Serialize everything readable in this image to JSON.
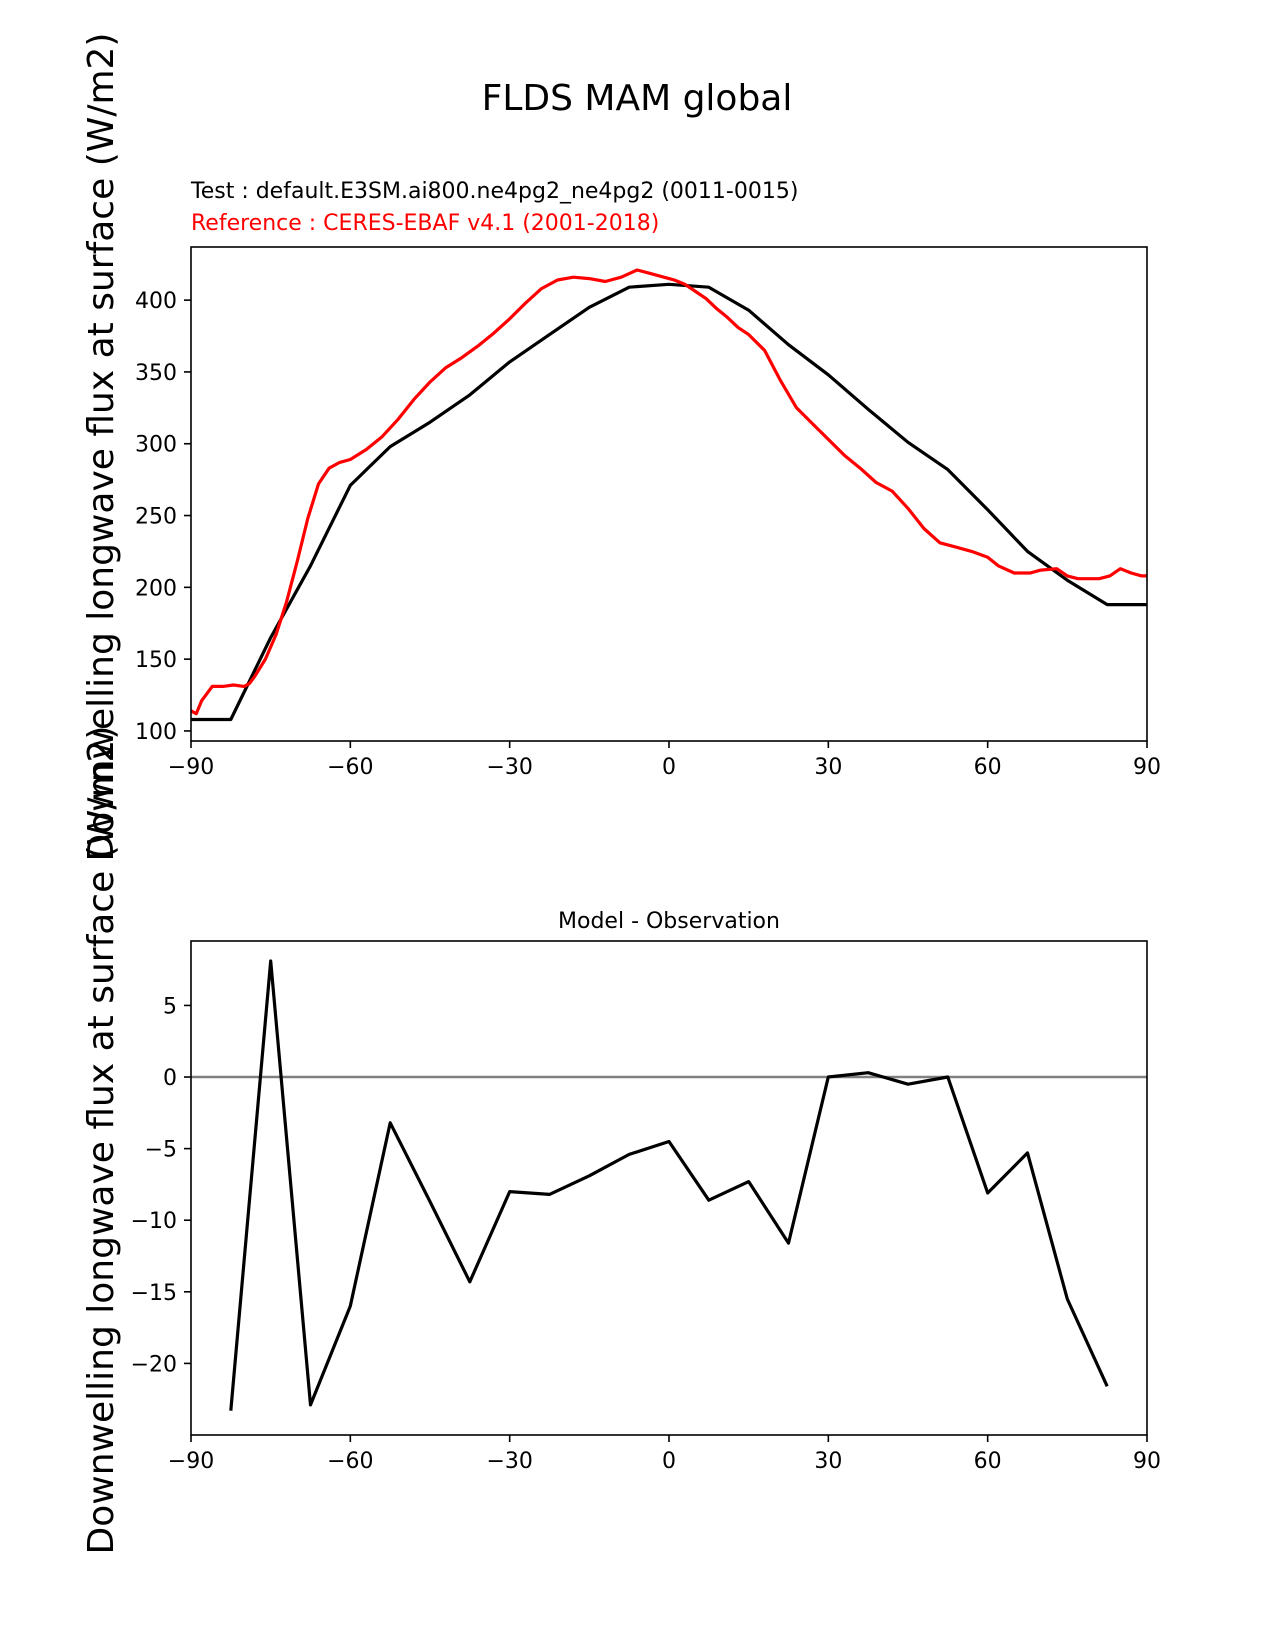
{
  "figure": {
    "suptitle": "FLDS MAM global"
  },
  "chart_data": [
    {
      "type": "line",
      "test_label": "Test : default.E3SM.ai800.ne4pg2_ne4pg2 (0011-0015)",
      "reference_label": "Reference : CERES-EBAF v4.1 (2001-2018)",
      "ylabel": "Downwelling longwave flux at surface (W/m2)",
      "xlim": [
        -90,
        90
      ],
      "ylim": [
        93,
        437
      ],
      "xticks": [
        -90,
        -60,
        -30,
        0,
        30,
        60,
        90
      ],
      "xtick_labels": [
        "−90",
        "−60",
        "−30",
        "0",
        "30",
        "60",
        "90"
      ],
      "yticks": [
        100,
        150,
        200,
        250,
        300,
        350,
        400
      ],
      "ytick_labels": [
        "100",
        "150",
        "200",
        "250",
        "300",
        "350",
        "400"
      ],
      "grid": false,
      "series": [
        {
          "name": "Test : default.E3SM.ai800.ne4pg2_ne4pg2 (0011-0015)",
          "color": "#000000",
          "x": [
            -90,
            -82.5,
            -75,
            -67.5,
            -60,
            -52.5,
            -45,
            -37.5,
            -30,
            -22.5,
            -15,
            -7.5,
            0,
            7.5,
            15,
            22.5,
            30,
            37.5,
            45,
            52.5,
            60,
            67.5,
            75,
            82.5,
            90
          ],
          "y": [
            108,
            108,
            165,
            215,
            271,
            298,
            315,
            334,
            357,
            376,
            395,
            409,
            411,
            409,
            393,
            369,
            348,
            324,
            301,
            282,
            254,
            225,
            205,
            188,
            188
          ]
        },
        {
          "name": "Reference : CERES-EBAF v4.1 (2001-2018)",
          "color": "#ff0000",
          "x": [
            -90,
            -89,
            -88,
            -86,
            -84,
            -82,
            -80,
            -79,
            -78,
            -76,
            -74,
            -72,
            -70,
            -68,
            -66,
            -64,
            -62,
            -60,
            -57,
            -54,
            -51,
            -48,
            -45,
            -42,
            -39,
            -36,
            -33,
            -30,
            -27,
            -24,
            -21,
            -18,
            -15,
            -12,
            -9,
            -6,
            -4,
            -2,
            0,
            1,
            3,
            5,
            7,
            9,
            11,
            13,
            15,
            18,
            21,
            24,
            27,
            30,
            33,
            36,
            39,
            42,
            45,
            48,
            51,
            54,
            57,
            60,
            62,
            65,
            68,
            70,
            73,
            75,
            77,
            79,
            81,
            83,
            85,
            87,
            89,
            90
          ],
          "y": [
            114,
            112,
            121,
            131,
            131,
            132,
            131,
            133,
            138,
            150,
            167,
            190,
            218,
            248,
            272,
            283,
            287,
            289,
            296,
            305,
            317,
            331,
            343,
            353,
            360,
            368,
            377,
            387,
            398,
            408,
            414,
            416,
            415,
            413,
            416,
            421,
            419,
            417,
            415,
            414,
            411,
            406,
            401,
            394,
            388,
            381,
            376,
            365,
            344,
            325,
            314,
            303,
            292,
            283,
            273,
            267,
            255,
            241,
            231,
            228,
            225,
            221,
            215,
            210,
            210,
            212,
            213,
            208,
            206,
            206,
            206,
            208,
            213,
            210,
            208,
            208
          ]
        }
      ]
    },
    {
      "type": "line",
      "title": "Model - Observation",
      "ylabel": "Downwelling longwave flux at surface (W/m2)",
      "xlim": [
        -90,
        90
      ],
      "ylim": [
        -25,
        9.5
      ],
      "xticks": [
        -90,
        -60,
        -30,
        0,
        30,
        60,
        90
      ],
      "xtick_labels": [
        "−90",
        "−60",
        "−30",
        "0",
        "30",
        "60",
        "90"
      ],
      "yticks": [
        -20,
        -15,
        -10,
        -5,
        0,
        5
      ],
      "ytick_labels": [
        "−20",
        "−15",
        "−10",
        "−5",
        "0",
        "5"
      ],
      "grid": false,
      "zero_line_color": "#808080",
      "series": [
        {
          "color": "#000000",
          "x": [
            -82.5,
            -75,
            -67.5,
            -60,
            -52.5,
            -45,
            -37.5,
            -30,
            -22.5,
            -15,
            -7.5,
            0,
            7.5,
            15,
            22.5,
            30,
            37.5,
            45,
            52.5,
            60,
            67.5,
            75,
            82.5
          ],
          "y": [
            -23.3,
            8.1,
            -22.9,
            -16.0,
            -3.2,
            -8.7,
            -14.3,
            -8.0,
            -8.2,
            -6.9,
            -5.4,
            -4.5,
            -8.6,
            -7.3,
            -11.6,
            0.0,
            0.3,
            -0.5,
            0.0,
            -8.1,
            -5.3,
            -15.5,
            -21.6
          ]
        }
      ]
    }
  ]
}
